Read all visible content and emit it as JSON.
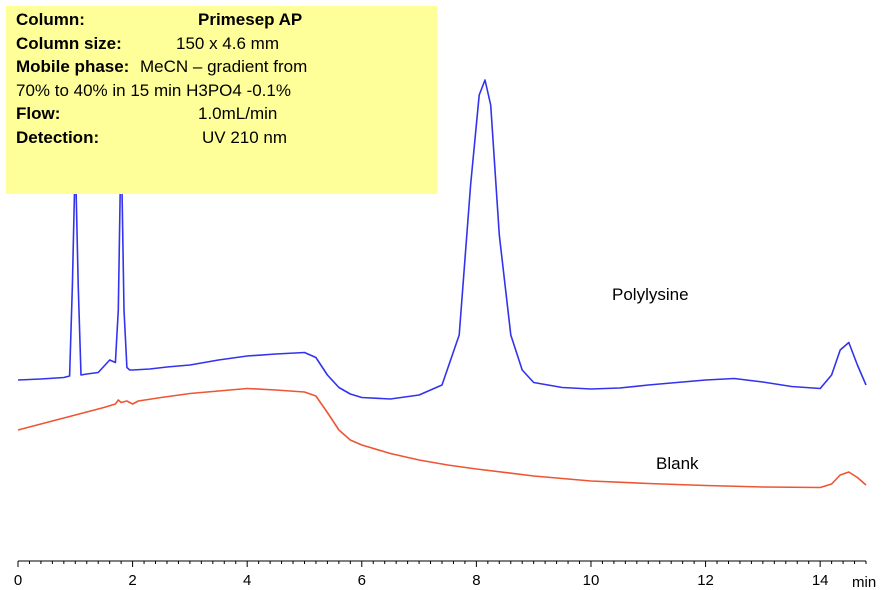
{
  "info": {
    "column_label": "Column:",
    "column_value": "Primesep AP",
    "size_label": "Column size:",
    "size_value": "150 x 4.6 mm",
    "mobile_label": "Mobile phase:",
    "mobile_value": "MeCN – gradient from",
    "mobile_value2": "70% to 40% in 15 min  H3PO4 -0.1%",
    "flow_label": "Flow:",
    "flow_value": "1.0mL/min",
    "detection_label": "Detection:",
    "detection_value": "UV 210 nm"
  },
  "chart_data": {
    "type": "line",
    "title": "",
    "xlabel": "min",
    "ylabel": "",
    "xlim": [
      0,
      14.8
    ],
    "ylim": [
      0,
      100
    ],
    "x_ticks": [
      0,
      2,
      4,
      6,
      8,
      10,
      12,
      14
    ],
    "grid": false,
    "series": [
      {
        "name": "Polylysine",
        "color": "#3333ee",
        "x": [
          0.0,
          0.4,
          0.8,
          0.9,
          0.95,
          1.0,
          1.05,
          1.1,
          1.2,
          1.4,
          1.6,
          1.7,
          1.75,
          1.8,
          1.85,
          1.9,
          1.95,
          2.0,
          2.3,
          2.6,
          3.0,
          3.5,
          4.0,
          4.5,
          5.0,
          5.2,
          5.4,
          5.6,
          5.8,
          6.0,
          6.5,
          7.0,
          7.4,
          7.7,
          7.9,
          8.05,
          8.15,
          8.25,
          8.4,
          8.6,
          8.8,
          9.0,
          9.5,
          10.0,
          10.5,
          11.0,
          11.5,
          12.0,
          12.5,
          13.0,
          13.5,
          14.0,
          14.2,
          14.35,
          14.5,
          14.65,
          14.8
        ],
        "y": [
          31.0,
          31.2,
          31.5,
          31.8,
          50,
          76,
          50,
          32.0,
          32.2,
          32.5,
          35.0,
          34.5,
          45,
          80,
          45,
          33.5,
          33.0,
          33.0,
          33.2,
          33.6,
          34.0,
          35.0,
          35.8,
          36.2,
          36.5,
          35.5,
          32.0,
          29.5,
          28.2,
          27.5,
          27.2,
          28.0,
          30.0,
          40.0,
          70.0,
          88.0,
          91.0,
          86.0,
          60.0,
          40.0,
          33.0,
          30.5,
          29.5,
          29.2,
          29.4,
          30.0,
          30.5,
          31.0,
          31.3,
          30.6,
          29.7,
          29.3,
          32.0,
          37.0,
          38.5,
          34.0,
          30.0
        ]
      },
      {
        "name": "Blank",
        "color": "#ee5533",
        "x": [
          0.0,
          0.5,
          1.0,
          1.5,
          1.7,
          1.75,
          1.8,
          1.9,
          2.0,
          2.1,
          2.5,
          3.0,
          3.5,
          4.0,
          4.5,
          5.0,
          5.2,
          5.4,
          5.6,
          5.8,
          6.0,
          6.5,
          7.0,
          7.5,
          8.0,
          9.0,
          10.0,
          11.0,
          12.0,
          13.0,
          14.0,
          14.2,
          14.35,
          14.5,
          14.65,
          14.8
        ],
        "y": [
          21.0,
          22.5,
          24.0,
          25.5,
          26.2,
          27.0,
          26.5,
          26.8,
          26.2,
          26.8,
          27.5,
          28.3,
          28.8,
          29.3,
          29.0,
          28.6,
          27.8,
          24.5,
          21.0,
          19.0,
          18.0,
          16.3,
          15.0,
          14.0,
          13.2,
          11.8,
          10.8,
          10.3,
          9.9,
          9.6,
          9.5,
          10.2,
          12.0,
          12.6,
          11.5,
          10.0
        ]
      }
    ],
    "annotations": [
      "Polylysine",
      "Blank"
    ]
  }
}
